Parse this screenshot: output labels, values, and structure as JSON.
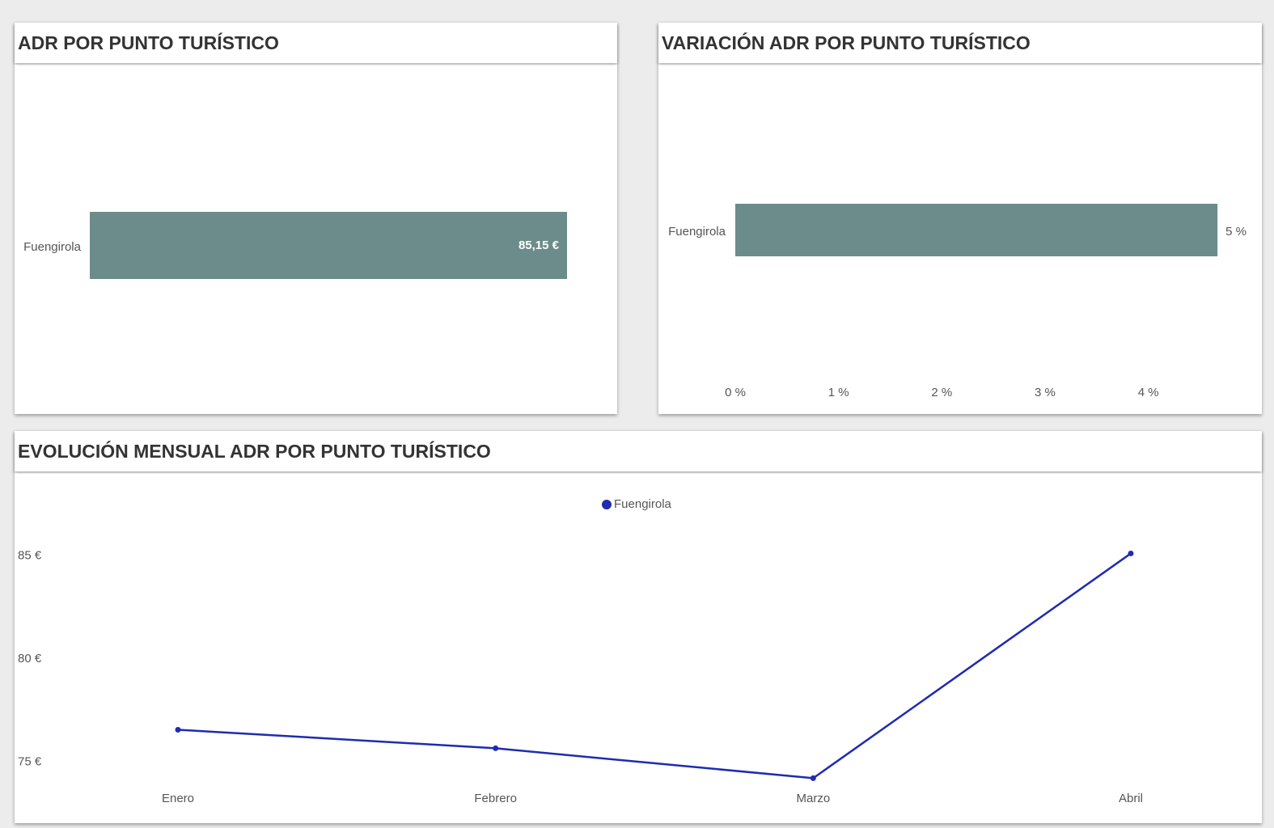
{
  "chart_data": [
    {
      "type": "hbar",
      "title": "ADR POR PUNTO TURÍSTICO",
      "categories": [
        "Fuengirola"
      ],
      "values": [
        85.15
      ],
      "value_labels": [
        "85,15 €"
      ],
      "color": "#6b8c8a"
    },
    {
      "type": "hbar",
      "title": "VARIACIÓN ADR POR PUNTO TURÍSTICO",
      "categories": [
        "Fuengirola"
      ],
      "values": [
        4.67
      ],
      "value_labels": [
        "5 %"
      ],
      "color": "#6b8c8a",
      "xlim": [
        0,
        4.7
      ],
      "xticks": [
        {
          "value": 0,
          "label": "0 %"
        },
        {
          "value": 1,
          "label": "1 %"
        },
        {
          "value": 2,
          "label": "2 %"
        },
        {
          "value": 3,
          "label": "3 %"
        },
        {
          "value": 4,
          "label": "4 %"
        }
      ]
    },
    {
      "type": "line",
      "title": "EVOLUCIÓN MENSUAL ADR POR PUNTO TURÍSTICO",
      "categories": [
        "Enero",
        "Febrero",
        "Marzo",
        "Abril"
      ],
      "series": [
        {
          "name": "Fuengirola",
          "color": "#1f2bb0",
          "values": [
            76.57,
            75.67,
            74.22,
            85.12
          ]
        }
      ],
      "ylim": [
        74,
        86
      ],
      "yticks": [
        {
          "value": 75,
          "label": "75 €"
        },
        {
          "value": 80,
          "label": "80 €"
        },
        {
          "value": 85,
          "label": "85 €"
        }
      ]
    }
  ]
}
